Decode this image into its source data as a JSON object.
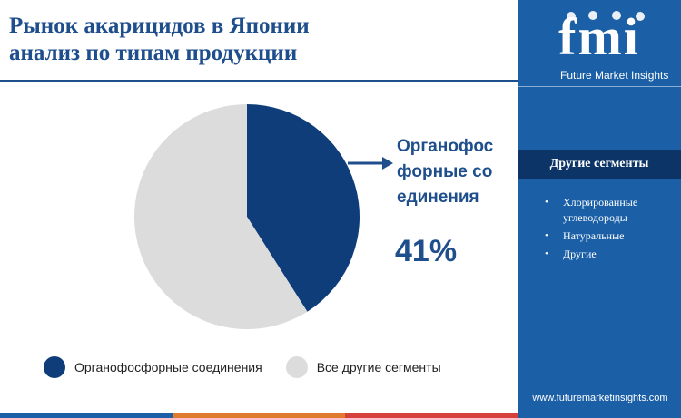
{
  "header": {
    "title_line1": "Рынок акарицидов в Японии",
    "title_line2": "анализ по типам продукции"
  },
  "chart_data": {
    "type": "pie",
    "slices": [
      {
        "label": "Органофосфорные соединения",
        "value": 41,
        "color": "#0f3d7a"
      },
      {
        "label": "Все другие сегменты",
        "value": 59,
        "color": "#dcdcdc"
      }
    ],
    "callout": {
      "label": "Органофосфорные соединения",
      "value_text": "41%"
    }
  },
  "legend": [
    {
      "label": "Органофосфорные соединения",
      "color": "#0f3d7a"
    },
    {
      "label": "Все другие сегменты",
      "color": "#dcdcdc"
    }
  ],
  "sidebar": {
    "logo_text": "fmi",
    "logo_subtitle": "Future Market Insights",
    "other_segments_title": "Другие сегменты",
    "other_segments": [
      "Хлорированные углеводороды",
      "Натуральные",
      "Другие"
    ],
    "website": "www.futuremarketinsights.com"
  },
  "bottom_bar_colors": [
    "#1b5fa6",
    "#e07a2e",
    "#d6403a"
  ],
  "colors": {
    "brand_blue": "#1b5fa6",
    "title_blue": "#1f4e8c",
    "dark_blue": "#0d3467"
  }
}
